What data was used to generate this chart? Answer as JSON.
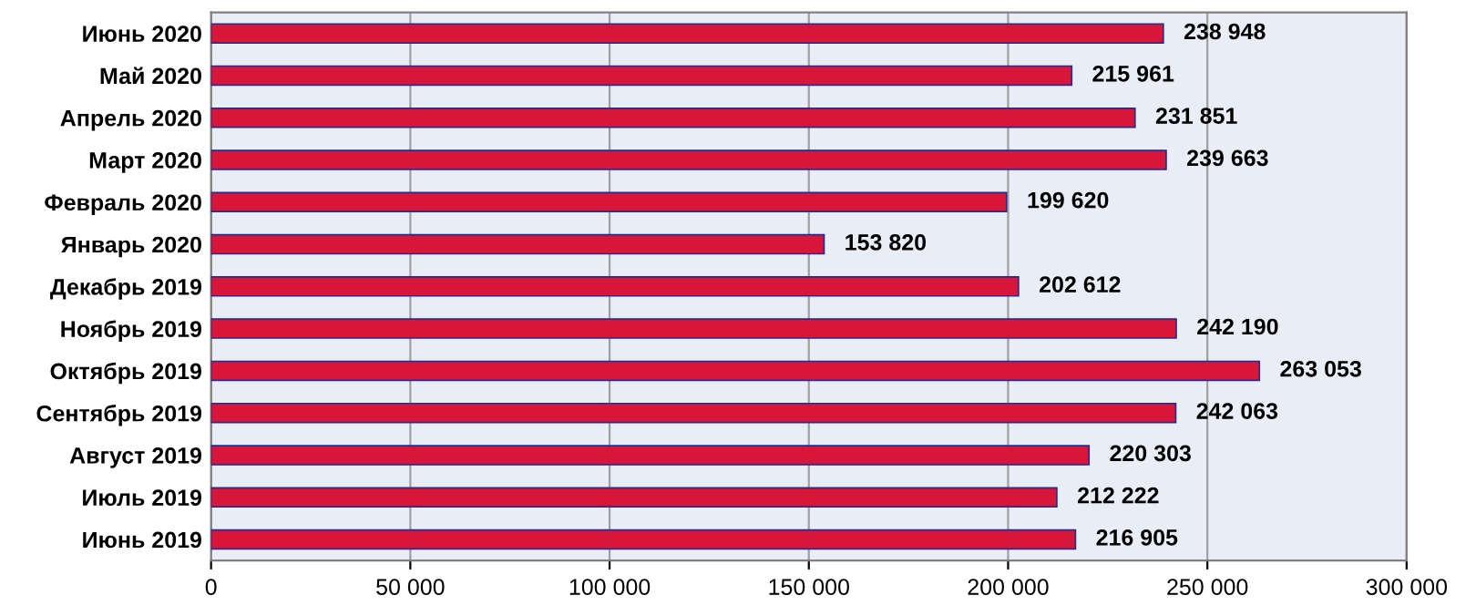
{
  "chart_data": {
    "type": "bar",
    "orientation": "horizontal",
    "categories": [
      "Июнь 2020",
      "Май 2020",
      "Апрель 2020",
      "Март 2020",
      "Февраль 2020",
      "Январь 2020",
      "Декабрь 2019",
      "Ноябрь 2019",
      "Октябрь 2019",
      "Сентябрь 2019",
      "Август 2019",
      "Июль 2019",
      "Июнь 2019"
    ],
    "values": [
      238948,
      215961,
      231851,
      239663,
      199620,
      153820,
      202612,
      242190,
      263053,
      242063,
      220303,
      212222,
      216905
    ],
    "value_labels": [
      "238 948",
      "215 961",
      "231 851",
      "239 663",
      "199 620",
      "153 820",
      "202 612",
      "242 190",
      "263 053",
      "242 063",
      "220 303",
      "212 222",
      "216 905"
    ],
    "color": "#d8163a",
    "xlim": [
      0,
      300000
    ],
    "xticks": [
      0,
      {
        "value": 50000,
        "label": "50 000"
      },
      {
        "value": 100000,
        "label": "100 000"
      },
      {
        "value": 150000,
        "label": "150 000"
      },
      {
        "value": 200000,
        "label": "200 000"
      },
      {
        "value": 250000,
        "label": "250 000"
      },
      {
        "value": 300000,
        "label": "300 000"
      }
    ],
    "grid": "x"
  }
}
